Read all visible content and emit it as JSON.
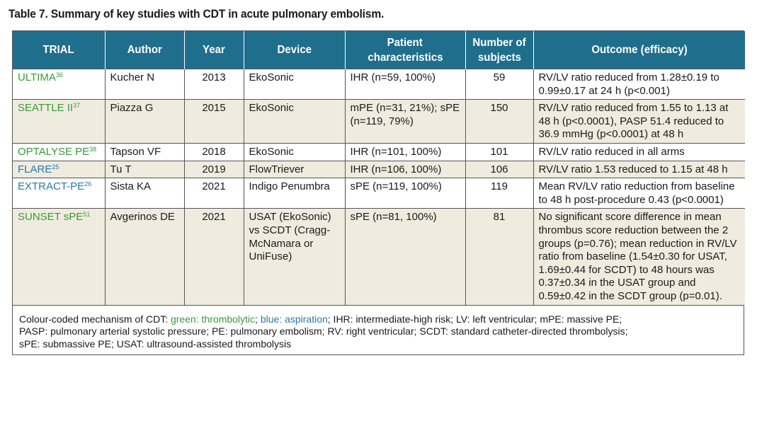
{
  "title": "Table 7. Summary of key studies with CDT in acute pulmonary embolism.",
  "colors": {
    "header_bg": "#1f6e8c",
    "header_text": "#ffffff",
    "row_alt_bg": "#efecdf",
    "thrombolytic_green": "#3a9a3a",
    "aspiration_blue": "#2a78ad"
  },
  "columns": {
    "trial": "TRIAL",
    "author": "Author",
    "year": "Year",
    "device": "Device",
    "patient_line1": "Patient",
    "patient_line2": "characteristics",
    "number_line1": "Number of",
    "number_line2": "subjects",
    "outcome": "Outcome (efficacy)"
  },
  "rows": [
    {
      "trial": "ULTIMA",
      "ref": "36",
      "mechanism": "green",
      "author": "Kucher N",
      "year": "2013",
      "device": "EkoSonic",
      "patients": "IHR (n=59, 100%)",
      "subjects": "59",
      "outcome": "RV/LV ratio reduced from 1.28±0.19 to 0.99±0.17 at 24 h (p<0.001)"
    },
    {
      "trial": "SEATTLE II",
      "ref": "37",
      "mechanism": "green",
      "author": "Piazza G",
      "year": "2015",
      "device": "EkoSonic",
      "patients": "mPE (n=31, 21%); sPE (n=119, 79%)",
      "subjects": "150",
      "outcome": "RV/LV ratio reduced from 1.55 to 1.13 at 48 h (p<0.0001), PASP 51.4 reduced to 36.9 mmHg (p<0.0001) at 48 h"
    },
    {
      "trial": "OPTALYSE PE",
      "ref": "38",
      "mechanism": "green",
      "author": "Tapson VF",
      "year": "2018",
      "device": "EkoSonic",
      "patients": "IHR (n=101, 100%)",
      "subjects": "101",
      "outcome": "RV/LV ratio reduced in all arms"
    },
    {
      "trial": "FLARE",
      "ref": "25",
      "mechanism": "blue",
      "author": "Tu T",
      "year": "2019",
      "device": "FlowTriever",
      "patients": "IHR (n=106, 100%)",
      "subjects": "106",
      "outcome": "RV/LV ratio 1.53 reduced to 1.15 at 48 h"
    },
    {
      "trial": "EXTRACT-PE",
      "ref": "26",
      "mechanism": "blue",
      "author": "Sista KA",
      "year": "2021",
      "device": "Indigo Penumbra",
      "patients": "sPE (n=119, 100%)",
      "subjects": "119",
      "outcome": " Mean RV/LV ratio reduction from baseline to 48 h post-procedure 0.43 (p<0.0001)"
    },
    {
      "trial": "SUNSET sPE",
      "ref": "51",
      "mechanism": "green",
      "author": "Avgerinos DE",
      "year": "2021",
      "device": "USAT (EkoSonic) vs SCDT (Cragg-McNamara or UniFuse)",
      "patients": "sPE (n=81, 100%)",
      "subjects": "81",
      "outcome": "No significant score difference in mean thrombus score reduction between the 2 groups (p=0.76); mean reduction in RV/LV ratio from baseline (1.54±0.30 for USAT, 1.69±0.44 for SCDT) to 48 hours was 0.37±0.34 in the USAT group and 0.59±0.42 in the SCDT group (p=0.01)."
    }
  ],
  "footnote": {
    "prefix": "Colour-coded mechanism of CDT: ",
    "green_label": "green: thrombolytic",
    "sep": "; ",
    "blue_label": "blue: aspiration",
    "rest_line1": "; IHR: intermediate-high risk; LV: left ventricular; mPE: massive PE;",
    "line2": "PASP: pulmonary arterial systolic pressure; PE: pulmonary embolism; RV: right ventricular; SCDT: standard catheter-directed thrombolysis;",
    "line3": "sPE: submassive PE; USAT: ultrasound-assisted thrombolysis"
  }
}
